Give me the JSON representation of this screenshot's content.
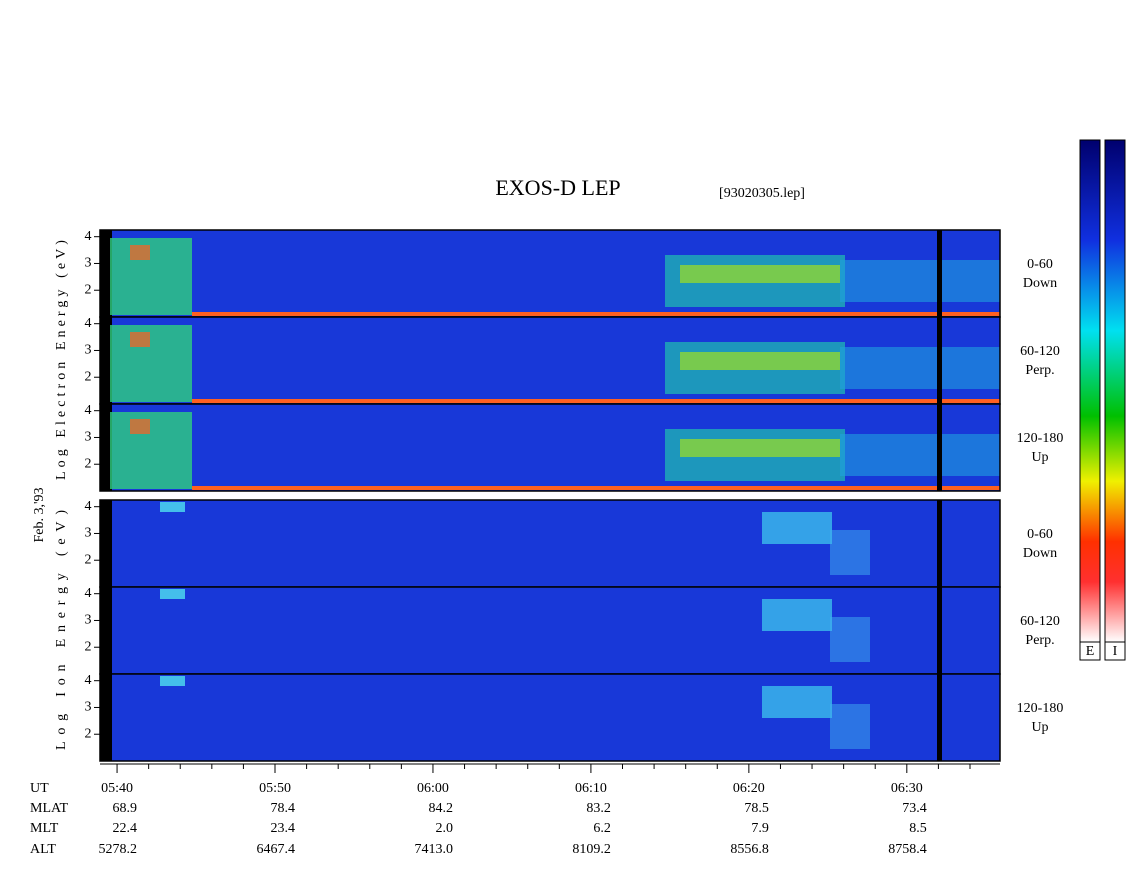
{
  "chart_data": {
    "type": "spectrogram",
    "title": "EXOS-D LEP",
    "subtitle": "[93020305.lep]",
    "date_label": "Feb. 3,'93",
    "panels": [
      {
        "ylabel": "Log Electron Energy (eV)",
        "channels": [
          {
            "angle": "0-60",
            "direction": "Down"
          },
          {
            "angle": "60-120",
            "direction": "Perp."
          },
          {
            "angle": "120-180",
            "direction": "Up"
          }
        ]
      },
      {
        "ylabel": "Log Ion Energy (eV)",
        "channels": [
          {
            "angle": "0-60",
            "direction": "Down"
          },
          {
            "angle": "60-120",
            "direction": "Perp."
          },
          {
            "angle": "120-180",
            "direction": "Up"
          }
        ]
      }
    ],
    "ylim": [
      1,
      4.25
    ],
    "yticks": [
      2,
      3,
      4
    ],
    "xlim": [
      38.92,
      95.9
    ],
    "xticks": [
      {
        "value": 40,
        "label": "05:40"
      },
      {
        "value": 50,
        "label": "05:50"
      },
      {
        "value": 60,
        "label": "06:00"
      },
      {
        "value": 70,
        "label": "06:10"
      },
      {
        "value": 80,
        "label": "06:20"
      },
      {
        "value": 90,
        "label": "06:30"
      }
    ],
    "xminorticks": [
      42,
      44,
      46,
      48,
      52,
      54,
      56,
      58,
      62,
      64,
      66,
      68,
      72,
      74,
      76,
      78,
      82,
      84,
      86,
      88,
      92,
      94
    ],
    "row_label": "UT",
    "ephemeris": [
      {
        "name": "MLAT",
        "values": [
          "68.9",
          "78.4",
          "84.2",
          "83.2",
          "78.5",
          "73.4"
        ]
      },
      {
        "name": "MLT",
        "values": [
          "22.4",
          "23.4",
          "2.0",
          "6.2",
          "7.9",
          "8.5"
        ]
      },
      {
        "name": "ALT",
        "values": [
          "5278.2",
          "6467.4",
          "7413.0",
          "8109.2",
          "8556.8",
          "8758.4"
        ]
      }
    ],
    "colorbars": [
      "E",
      "I"
    ]
  }
}
